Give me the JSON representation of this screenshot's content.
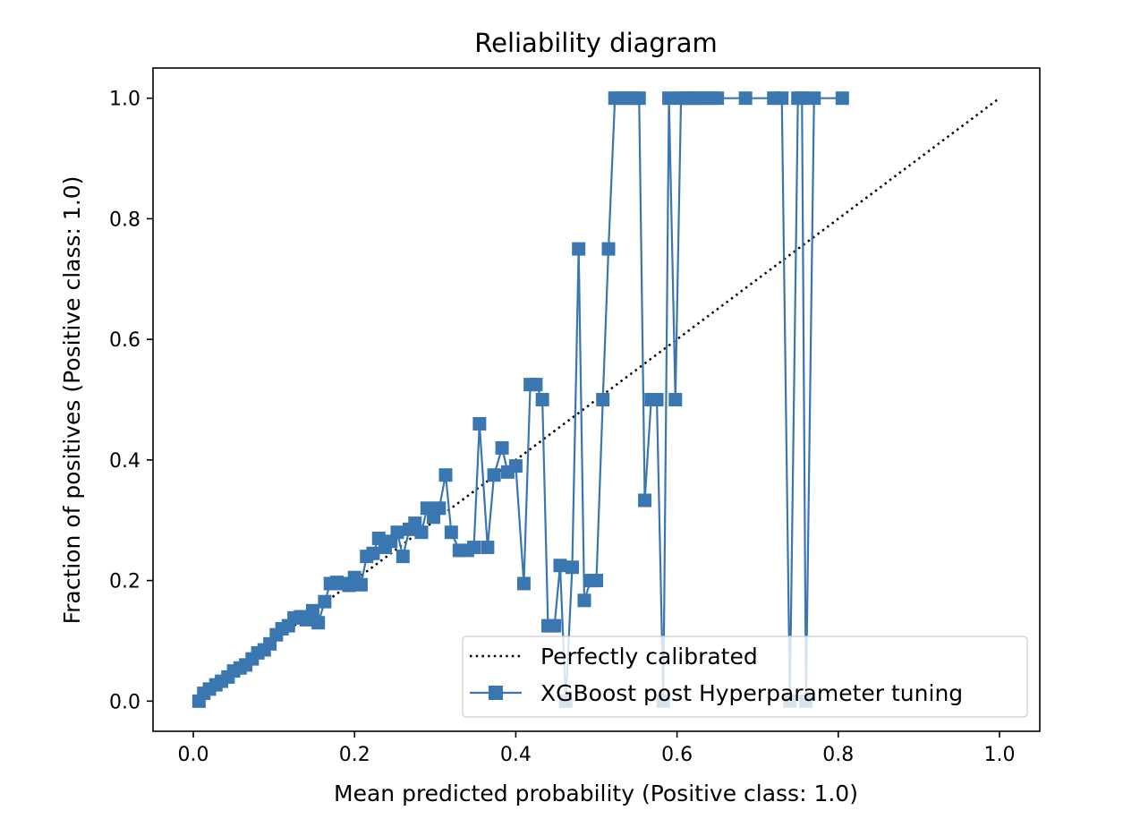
{
  "chart_data": {
    "type": "line",
    "title": "Reliability diagram",
    "xlabel": "Mean predicted probability (Positive class: 1.0)",
    "ylabel": "Fraction of positives (Positive class: 1.0)",
    "xlim": [
      -0.05,
      1.05
    ],
    "ylim": [
      -0.05,
      1.05
    ],
    "xticks": [
      "0.0",
      "0.2",
      "0.4",
      "0.6",
      "0.8",
      "1.0"
    ],
    "yticks": [
      "0.0",
      "0.2",
      "0.4",
      "0.6",
      "0.8",
      "1.0"
    ],
    "grid": false,
    "legend_position": "lower-right",
    "series": [
      {
        "name": "Perfectly calibrated",
        "style": "dotted",
        "color": "#000000",
        "x": [
          0,
          1
        ],
        "y": [
          0,
          1
        ]
      },
      {
        "name": "XGBoost post Hyperparameter tuning",
        "style": "solid",
        "marker": "square",
        "color": "#3a76b0",
        "x": [
          0.007,
          0.013,
          0.02,
          0.028,
          0.035,
          0.043,
          0.05,
          0.058,
          0.065,
          0.073,
          0.08,
          0.088,
          0.095,
          0.103,
          0.11,
          0.118,
          0.125,
          0.133,
          0.14,
          0.148,
          0.155,
          0.163,
          0.17,
          0.178,
          0.185,
          0.193,
          0.2,
          0.208,
          0.215,
          0.223,
          0.23,
          0.238,
          0.245,
          0.253,
          0.26,
          0.268,
          0.275,
          0.283,
          0.29,
          0.298,
          0.305,
          0.313,
          0.32,
          0.33,
          0.34,
          0.348,
          0.355,
          0.365,
          0.373,
          0.383,
          0.39,
          0.4,
          0.41,
          0.418,
          0.425,
          0.433,
          0.44,
          0.448,
          0.455,
          0.462,
          0.47,
          0.478,
          0.485,
          0.493,
          0.5,
          0.508,
          0.515,
          0.523,
          0.53,
          0.538,
          0.545,
          0.553,
          0.56,
          0.568,
          0.575,
          0.583,
          0.59,
          0.598,
          0.605,
          0.613,
          0.62,
          0.628,
          0.635,
          0.643,
          0.65,
          0.685,
          0.72,
          0.73,
          0.74,
          0.75,
          0.755,
          0.76,
          0.77,
          0.805
        ],
        "y": [
          0.0,
          0.013,
          0.02,
          0.027,
          0.033,
          0.04,
          0.05,
          0.055,
          0.06,
          0.07,
          0.08,
          0.085,
          0.095,
          0.11,
          0.12,
          0.125,
          0.138,
          0.14,
          0.135,
          0.15,
          0.13,
          0.165,
          0.195,
          0.197,
          0.195,
          0.192,
          0.205,
          0.193,
          0.24,
          0.245,
          0.27,
          0.255,
          0.265,
          0.28,
          0.24,
          0.285,
          0.295,
          0.28,
          0.32,
          0.305,
          0.32,
          0.375,
          0.28,
          0.25,
          0.25,
          0.255,
          0.46,
          0.255,
          0.375,
          0.42,
          0.38,
          0.39,
          0.195,
          0.525,
          0.525,
          0.5,
          0.125,
          0.125,
          0.225,
          0.0,
          0.222,
          0.75,
          0.167,
          0.2,
          0.2,
          0.5,
          0.75,
          1.0,
          1.0,
          1.0,
          1.0,
          1.0,
          0.333,
          0.5,
          0.5,
          0.0,
          1.0,
          0.5,
          1.0,
          1.0,
          1.0,
          1.0,
          1.0,
          1.0,
          1.0,
          1.0,
          1.0,
          1.0,
          0.0,
          1.0,
          1.0,
          0.0,
          1.0,
          1.0
        ]
      }
    ]
  }
}
